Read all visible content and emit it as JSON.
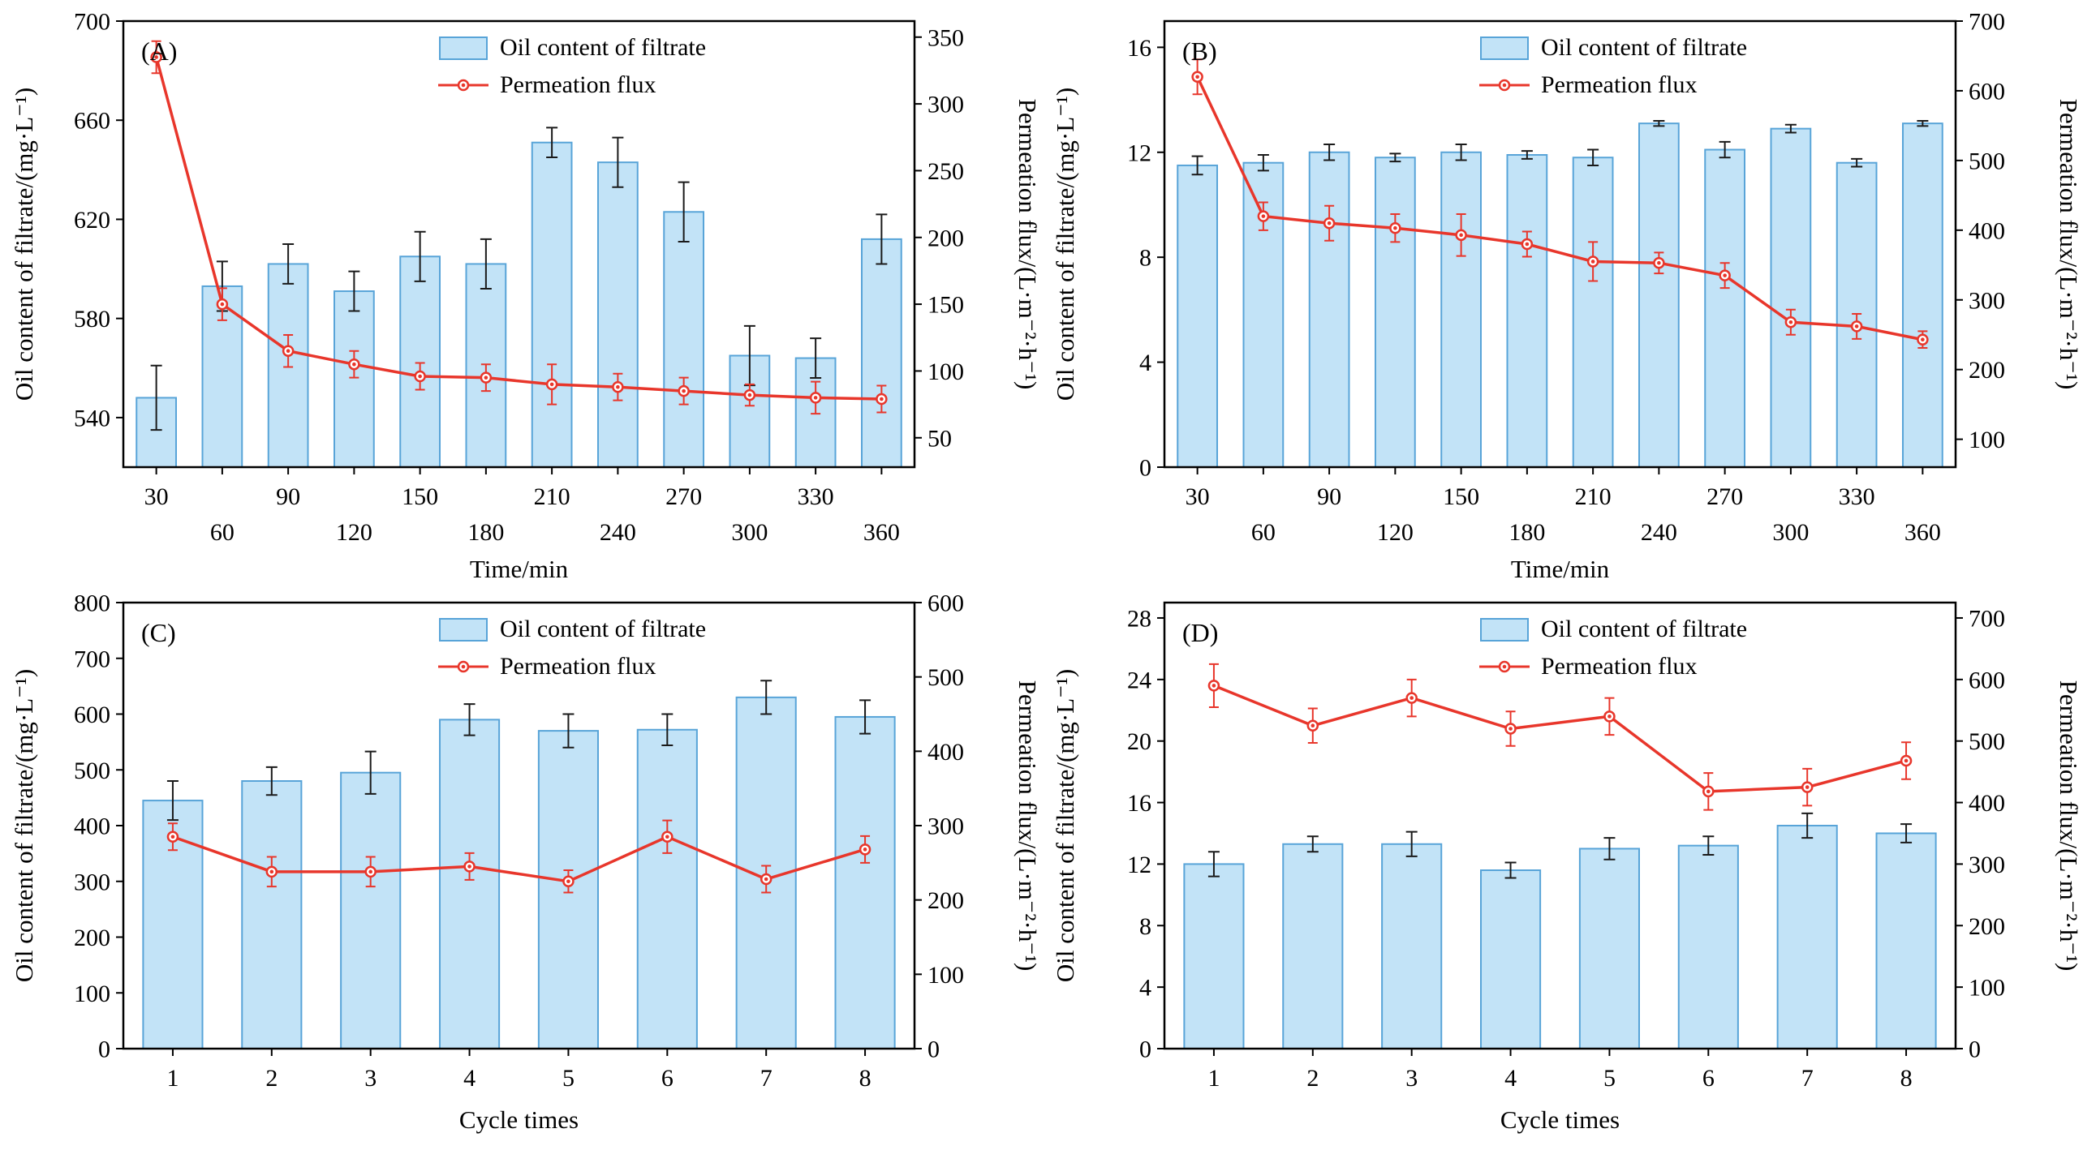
{
  "colors": {
    "bar_fill": "#c2e3f7",
    "bar_stroke": "#58a4d8",
    "line": "#e8362b",
    "bar_error": "#1a1a1a",
    "axis": "#000000"
  },
  "chart_data": [
    {
      "id": "A",
      "panel_label": "(A)",
      "type": "bar",
      "title": "",
      "xlabel": "Time/min",
      "x_stagger": true,
      "categories": [
        30,
        60,
        90,
        120,
        150,
        180,
        210,
        240,
        270,
        300,
        330,
        360
      ],
      "left_axis": {
        "label": "Oil content of filtrate/(mg·L⁻¹)",
        "min": 520,
        "max": 700,
        "ticks": [
          540,
          580,
          620,
          660,
          700
        ]
      },
      "right_axis": {
        "label": "Permeation flux/(L·m⁻²·h⁻¹)",
        "min": 28,
        "max": 362,
        "ticks": [
          50,
          100,
          150,
          200,
          250,
          300,
          350
        ]
      },
      "series": [
        {
          "name": "Oil content of filtrate",
          "type": "bar",
          "axis": "left",
          "values": [
            548,
            593,
            602,
            591,
            605,
            602,
            651,
            643,
            623,
            565,
            564,
            612
          ],
          "errors": [
            13,
            10,
            8,
            8,
            10,
            10,
            6,
            10,
            12,
            12,
            8,
            10
          ]
        },
        {
          "name": "Permeation flux",
          "type": "line",
          "axis": "right",
          "values": [
            335,
            150,
            115,
            105,
            96,
            95,
            90,
            88,
            85,
            82,
            80,
            79
          ],
          "errors": [
            12,
            12,
            12,
            10,
            10,
            10,
            15,
            10,
            10,
            8,
            12,
            10
          ]
        }
      ]
    },
    {
      "id": "B",
      "panel_label": "(B)",
      "type": "bar",
      "title": "",
      "xlabel": "Time/min",
      "x_stagger": true,
      "categories": [
        30,
        60,
        90,
        120,
        150,
        180,
        210,
        240,
        270,
        300,
        330,
        360
      ],
      "left_axis": {
        "label": "Oil content of filtrate/(mg·L⁻¹)",
        "min": 0,
        "max": 17,
        "ticks": [
          0,
          4,
          8,
          12,
          16
        ]
      },
      "right_axis": {
        "label": "Permeation flux/(L·m⁻²·h⁻¹)",
        "min": 60,
        "max": 700,
        "ticks": [
          100,
          200,
          300,
          400,
          500,
          600,
          700
        ]
      },
      "series": [
        {
          "name": "Oil content of filtrate",
          "type": "bar",
          "axis": "left",
          "values": [
            11.5,
            11.6,
            12.0,
            11.8,
            12.0,
            11.9,
            11.8,
            13.1,
            12.1,
            12.9,
            11.6,
            13.1
          ],
          "errors": [
            0.35,
            0.3,
            0.3,
            0.15,
            0.3,
            0.15,
            0.3,
            0.1,
            0.3,
            0.15,
            0.15,
            0.1
          ]
        },
        {
          "name": "Permeation flux",
          "type": "line",
          "axis": "right",
          "values": [
            620,
            420,
            410,
            403,
            393,
            380,
            355,
            353,
            335,
            268,
            262,
            243
          ],
          "errors": [
            25,
            20,
            25,
            20,
            30,
            18,
            28,
            15,
            18,
            18,
            18,
            12
          ]
        }
      ]
    },
    {
      "id": "C",
      "panel_label": "(C)",
      "type": "bar",
      "title": "",
      "xlabel": "Cycle times",
      "x_stagger": false,
      "categories": [
        1,
        2,
        3,
        4,
        5,
        6,
        7,
        8
      ],
      "left_axis": {
        "label": "Oil content of filtrate/(mg·L⁻¹)",
        "min": 0,
        "max": 800,
        "ticks": [
          0,
          100,
          200,
          300,
          400,
          500,
          600,
          700,
          800
        ]
      },
      "right_axis": {
        "label": "Permeation flux/(L·m⁻²·h⁻¹)",
        "min": 0,
        "max": 600,
        "ticks": [
          0,
          100,
          200,
          300,
          400,
          500,
          600
        ]
      },
      "series": [
        {
          "name": "Oil content of filtrate",
          "type": "bar",
          "axis": "left",
          "values": [
            445,
            480,
            495,
            590,
            570,
            572,
            630,
            595
          ],
          "errors": [
            35,
            25,
            38,
            28,
            30,
            28,
            30,
            30
          ]
        },
        {
          "name": "Permeation flux",
          "type": "line",
          "axis": "right",
          "values": [
            285,
            238,
            238,
            245,
            225,
            285,
            228,
            268
          ],
          "errors": [
            18,
            20,
            20,
            18,
            15,
            22,
            18,
            18
          ]
        }
      ]
    },
    {
      "id": "D",
      "panel_label": "(D)",
      "type": "bar",
      "title": "",
      "xlabel": "Cycle times",
      "x_stagger": false,
      "categories": [
        1,
        2,
        3,
        4,
        5,
        6,
        7,
        8
      ],
      "left_axis": {
        "label": "Oil content of filtrate/(mg·L⁻¹)",
        "min": 0,
        "max": 29,
        "ticks": [
          0,
          4,
          8,
          12,
          16,
          20,
          24,
          28
        ]
      },
      "right_axis": {
        "label": "Permeation flux/(L·m⁻²·h⁻¹)",
        "min": 0,
        "max": 725,
        "ticks": [
          0,
          100,
          200,
          300,
          400,
          500,
          600,
          700
        ]
      },
      "series": [
        {
          "name": "Oil content of filtrate",
          "type": "bar",
          "axis": "left",
          "values": [
            12.0,
            13.3,
            13.3,
            11.6,
            13.0,
            13.2,
            14.5,
            14.0
          ],
          "errors": [
            0.8,
            0.5,
            0.8,
            0.5,
            0.7,
            0.6,
            0.8,
            0.6
          ]
        },
        {
          "name": "Permeation flux",
          "type": "line",
          "axis": "right",
          "values": [
            590,
            525,
            570,
            520,
            540,
            418,
            425,
            468
          ],
          "errors": [
            35,
            28,
            30,
            28,
            30,
            30,
            30,
            30
          ]
        }
      ]
    }
  ]
}
